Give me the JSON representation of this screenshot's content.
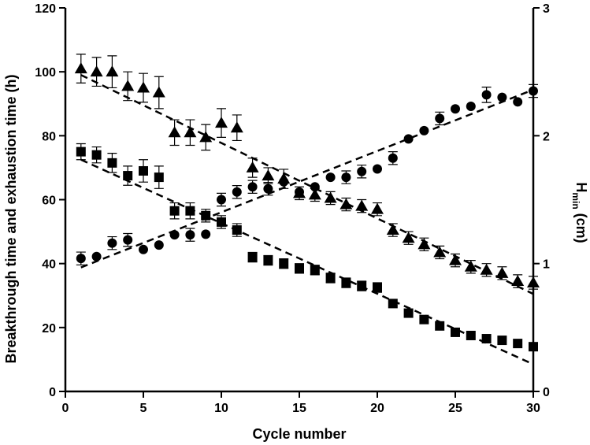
{
  "chart_data": {
    "type": "scatter",
    "xlabel": "Cycle number",
    "ylabel": "Breakthrough time and exhaustion time (h)",
    "y2label_main": "H",
    "y2label_sub": "min",
    "y2label_unit": " (cm)",
    "xlim": [
      0,
      30
    ],
    "ylim": [
      0,
      120
    ],
    "y2lim": [
      0,
      3
    ],
    "xticks": [
      "0",
      "5",
      "10",
      "15",
      "20",
      "25",
      "30"
    ],
    "yticks": [
      "0",
      "20",
      "40",
      "60",
      "80",
      "100",
      "120"
    ],
    "y2ticks": [
      "0",
      "1",
      "2",
      "3"
    ],
    "grid": false,
    "series": [
      {
        "marker": "square",
        "axis": "left",
        "x": [
          1,
          2,
          3,
          4,
          5,
          6,
          7,
          8,
          9,
          10,
          11,
          12,
          13,
          14,
          15,
          16,
          17,
          18,
          19,
          20,
          21,
          22,
          23,
          24,
          25,
          26,
          27,
          28,
          29,
          30
        ],
        "y": [
          75,
          74,
          71.5,
          67.5,
          69,
          67,
          56.5,
          56.5,
          55,
          53,
          50.5,
          42,
          41,
          40,
          38.5,
          38,
          35.5,
          34,
          33,
          32.5,
          27.5,
          24.5,
          22.5,
          20.5,
          18.5,
          17.5,
          16.5,
          16,
          15,
          14
        ],
        "err": [
          2.5,
          2.5,
          3,
          3,
          3.5,
          3.5,
          2.5,
          2.5,
          2,
          2,
          2,
          1.5,
          1.5,
          1.5,
          1.5,
          1.5,
          1.5,
          1.5,
          1.5,
          1.5,
          0,
          0,
          0,
          0,
          0,
          0,
          0,
          0,
          0,
          0
        ],
        "trend": {
          "x": [
            1,
            30
          ],
          "y": [
            72.5,
            8.5
          ]
        }
      },
      {
        "marker": "triangle",
        "axis": "left",
        "x": [
          1,
          2,
          3,
          4,
          5,
          6,
          7,
          8,
          9,
          10,
          11,
          12,
          13,
          14,
          15,
          16,
          17,
          18,
          19,
          20,
          21,
          22,
          23,
          24,
          25,
          26,
          27,
          28,
          29,
          30
        ],
        "y": [
          101,
          100,
          100,
          95.5,
          95,
          93.5,
          81,
          81,
          79.5,
          84,
          82.5,
          70,
          67.5,
          66.5,
          62,
          61.5,
          60.5,
          58.5,
          58,
          57,
          50.5,
          48,
          46,
          43.5,
          41,
          39,
          38,
          37,
          34.5,
          34
        ],
        "err": [
          4.5,
          4.5,
          5,
          4.5,
          4.5,
          5,
          4,
          4,
          4,
          4.5,
          4,
          3,
          2.5,
          3,
          2,
          2,
          2,
          2,
          2,
          2,
          2,
          2,
          2,
          2,
          2,
          2,
          2,
          2,
          2,
          2
        ],
        "trend": {
          "x": [
            1,
            30
          ],
          "y": [
            99,
            30.5
          ]
        }
      },
      {
        "marker": "circle",
        "axis": "right",
        "x": [
          1,
          2,
          3,
          4,
          5,
          6,
          7,
          8,
          9,
          10,
          11,
          12,
          13,
          14,
          15,
          16,
          17,
          18,
          19,
          20,
          21,
          22,
          23,
          24,
          25,
          26,
          27,
          28,
          29,
          30
        ],
        "y": [
          1.04,
          1.055,
          1.16,
          1.185,
          1.11,
          1.145,
          1.225,
          1.225,
          1.23,
          1.5,
          1.56,
          1.6,
          1.585,
          1.64,
          1.56,
          1.6,
          1.675,
          1.675,
          1.72,
          1.74,
          1.825,
          1.975,
          2.04,
          2.135,
          2.21,
          2.23,
          2.32,
          2.3,
          2.265,
          2.35
        ],
        "err": [
          0.05,
          0,
          0.05,
          0.05,
          0,
          0,
          0,
          0.05,
          0,
          0.05,
          0.05,
          0.05,
          0.05,
          0,
          0,
          0,
          0,
          0.05,
          0.05,
          0,
          0.05,
          0,
          0,
          0.05,
          0,
          0,
          0.06,
          0,
          0,
          0.05
        ],
        "trend": {
          "x": [
            1,
            30
          ],
          "y": [
            0.97,
            2.36
          ]
        }
      }
    ]
  }
}
